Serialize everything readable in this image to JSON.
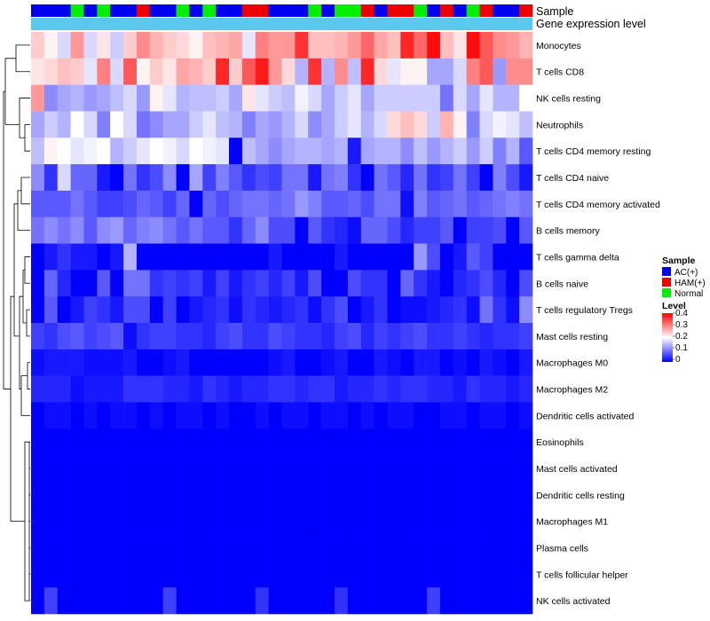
{
  "chart_data": {
    "type": "heatmap",
    "annotation_rows": [
      "Sample",
      "Gene expression level"
    ],
    "sample_groups": [
      "AC(+)",
      "AC(+)",
      "AC(+)",
      "Normal",
      "AC(+)",
      "Normal",
      "AC(+)",
      "AC(+)",
      "HAM(+)",
      "AC(+)",
      "AC(+)",
      "Normal",
      "AC(+)",
      "Normal",
      "AC(+)",
      "AC(+)",
      "HAM(+)",
      "HAM(+)",
      "AC(+)",
      "AC(+)",
      "AC(+)",
      "Normal",
      "AC(+)",
      "Normal",
      "Normal",
      "HAM(+)",
      "AC(+)",
      "HAM(+)",
      "HAM(+)",
      "Normal",
      "AC(+)",
      "HAM(+)",
      "AC(+)",
      "Normal",
      "HAM(+)",
      "AC(+)",
      "AC(+)",
      "HAM(+)"
    ],
    "rows": [
      "Monocytes",
      "T cells CD8",
      "NK cells resting",
      "Neutrophils",
      "T cells CD4 memory resting",
      "T cells CD4 naive",
      "T cells CD4 memory activated",
      "B cells memory",
      "T cells gamma delta",
      "B cells naive",
      "T cells regulatory  Tregs",
      "Mast cells resting",
      "Macrophages M0",
      "Macrophages M2",
      "Dendritic cells activated",
      "Eosinophils",
      "Mast cells activated",
      "Dendritic cells resting",
      "Macrophages M1",
      "Plasma cells",
      "T cells follicular helper",
      "NK cells activated"
    ],
    "values": [
      [
        0.24,
        0.21,
        0.17,
        0.28,
        0.17,
        0.22,
        0.16,
        0.24,
        0.29,
        0.26,
        0.24,
        0.23,
        0.21,
        0.25,
        0.26,
        0.27,
        0.18,
        0.3,
        0.28,
        0.28,
        0.36,
        0.25,
        0.25,
        0.26,
        0.28,
        0.32,
        0.27,
        0.25,
        0.37,
        0.32,
        0.39,
        0.25,
        0.22,
        0.39,
        0.33,
        0.29,
        0.28,
        0.26
      ],
      [
        0.22,
        0.23,
        0.25,
        0.24,
        0.18,
        0.3,
        0.17,
        0.33,
        0.21,
        0.24,
        0.22,
        0.27,
        0.26,
        0.24,
        0.37,
        0.24,
        0.33,
        0.38,
        0.28,
        0.23,
        0.14,
        0.36,
        0.14,
        0.29,
        0.15,
        0.37,
        0.23,
        0.18,
        0.21,
        0.21,
        0.13,
        0.13,
        0.17,
        0.3,
        0.33,
        0.12,
        0.29,
        0.29
      ],
      [
        0.28,
        0.11,
        0.13,
        0.14,
        0.12,
        0.13,
        0.15,
        0.17,
        0.12,
        0.21,
        0.18,
        0.14,
        0.15,
        0.15,
        0.16,
        0.13,
        0.22,
        0.18,
        0.16,
        0.15,
        0.19,
        0.17,
        0.13,
        0.16,
        0.18,
        0.13,
        0.16,
        0.16,
        0.16,
        0.16,
        0.16,
        0.09,
        0.17,
        0.13,
        0.18,
        0.14,
        0.14,
        0.2
      ],
      [
        0.13,
        0.16,
        0.14,
        0.2,
        0.17,
        0.1,
        0.2,
        0.17,
        0.09,
        0.11,
        0.13,
        0.13,
        0.16,
        0.18,
        0.15,
        0.14,
        0.1,
        0.13,
        0.12,
        0.14,
        0.17,
        0.11,
        0.13,
        0.16,
        0.18,
        0.14,
        0.17,
        0.23,
        0.25,
        0.23,
        0.16,
        0.26,
        0.21,
        0.1,
        0.17,
        0.19,
        0.18,
        0.15
      ],
      [
        0.15,
        0.21,
        0.2,
        0.18,
        0.19,
        0.2,
        0.14,
        0.16,
        0.18,
        0.2,
        0.19,
        0.17,
        0.2,
        0.19,
        0.18,
        0.0,
        0.15,
        0.13,
        0.11,
        0.13,
        0.14,
        0.14,
        0.13,
        0.14,
        0.02,
        0.13,
        0.14,
        0.14,
        0.11,
        0.15,
        0.12,
        0.14,
        0.16,
        0.12,
        0.16,
        0.1,
        0.14,
        0.07
      ],
      [
        0.11,
        0.04,
        0.17,
        0.08,
        0.08,
        0.02,
        0.0,
        0.09,
        0.04,
        0.06,
        0.11,
        0.0,
        0.13,
        0.05,
        0.1,
        0.07,
        0.04,
        0.06,
        0.05,
        0.09,
        0.09,
        0.02,
        0.09,
        0.1,
        0.04,
        0.0,
        0.09,
        0.07,
        0.03,
        0.09,
        0.04,
        0.05,
        0.09,
        0.05,
        0.0,
        0.1,
        0.06,
        0.02
      ],
      [
        0.07,
        0.07,
        0.07,
        0.09,
        0.07,
        0.05,
        0.05,
        0.06,
        0.08,
        0.07,
        0.05,
        0.08,
        0.0,
        0.08,
        0.06,
        0.08,
        0.09,
        0.09,
        0.08,
        0.09,
        0.12,
        0.1,
        0.07,
        0.07,
        0.08,
        0.06,
        0.09,
        0.09,
        0.01,
        0.1,
        0.07,
        0.08,
        0.09,
        0.07,
        0.08,
        0.09,
        0.1,
        0.09
      ],
      [
        0.09,
        0.11,
        0.09,
        0.11,
        0.07,
        0.11,
        0.12,
        0.08,
        0.1,
        0.11,
        0.09,
        0.07,
        0.09,
        0.07,
        0.07,
        0.04,
        0.08,
        0.11,
        0.06,
        0.06,
        0.0,
        0.07,
        0.04,
        0.03,
        0.01,
        0.08,
        0.08,
        0.06,
        0.03,
        0.05,
        0.05,
        0.07,
        0.0,
        0.05,
        0.05,
        0.06,
        0.0,
        0.07
      ],
      [
        0.0,
        0.02,
        0.04,
        0.02,
        0.02,
        0.0,
        0.02,
        0.14,
        0.0,
        0.0,
        0.0,
        0.0,
        0.0,
        0.0,
        0.0,
        0.0,
        0.0,
        0.0,
        0.02,
        0.0,
        0.0,
        0.0,
        0.0,
        0.02,
        0.0,
        0.0,
        0.0,
        0.0,
        0.0,
        0.12,
        0.06,
        0.0,
        0.02,
        0.07,
        0.05,
        0.0,
        0.0,
        0.0
      ],
      [
        0.0,
        0.08,
        0.03,
        0.0,
        0.0,
        0.07,
        0.0,
        0.09,
        0.09,
        0.04,
        0.05,
        0.04,
        0.05,
        0.02,
        0.05,
        0.02,
        0.04,
        0.05,
        0.03,
        0.05,
        0.02,
        0.06,
        0.0,
        0.0,
        0.06,
        0.04,
        0.04,
        0.0,
        0.08,
        0.04,
        0.02,
        0.0,
        0.03,
        0.04,
        0.06,
        0.03,
        0.0,
        0.06
      ],
      [
        0.0,
        0.07,
        0.0,
        0.02,
        0.05,
        0.04,
        0.02,
        0.06,
        0.06,
        0.0,
        0.05,
        0.0,
        0.02,
        0.03,
        0.04,
        0.01,
        0.04,
        0.03,
        0.02,
        0.03,
        0.04,
        0.01,
        0.04,
        0.06,
        0.0,
        0.02,
        0.04,
        0.0,
        0.01,
        0.01,
        0.02,
        0.03,
        0.04,
        0.01,
        0.09,
        0.04,
        0.01,
        0.11
      ],
      [
        0.05,
        0.04,
        0.06,
        0.07,
        0.05,
        0.06,
        0.07,
        0.01,
        0.04,
        0.05,
        0.05,
        0.04,
        0.04,
        0.03,
        0.05,
        0.06,
        0.04,
        0.04,
        0.06,
        0.05,
        0.04,
        0.04,
        0.03,
        0.05,
        0.06,
        0.03,
        0.05,
        0.04,
        0.05,
        0.06,
        0.04,
        0.04,
        0.05,
        0.04,
        0.03,
        0.04,
        0.04,
        0.05
      ],
      [
        0.01,
        0.02,
        0.02,
        0.02,
        0.01,
        0.01,
        0.01,
        0.02,
        0.0,
        0.0,
        0.01,
        0.02,
        0.0,
        0.0,
        0.0,
        0.0,
        0.0,
        0.0,
        0.01,
        0.02,
        0.0,
        0.0,
        0.01,
        0.02,
        0.0,
        0.0,
        0.02,
        0.01,
        0.0,
        0.02,
        0.02,
        0.0,
        0.01,
        0.0,
        0.02,
        0.01,
        0.0,
        0.02
      ],
      [
        0.03,
        0.03,
        0.03,
        0.01,
        0.02,
        0.02,
        0.02,
        0.04,
        0.04,
        0.04,
        0.03,
        0.03,
        0.02,
        0.04,
        0.03,
        0.02,
        0.03,
        0.03,
        0.04,
        0.04,
        0.03,
        0.04,
        0.04,
        0.02,
        0.03,
        0.03,
        0.04,
        0.03,
        0.04,
        0.04,
        0.03,
        0.03,
        0.02,
        0.04,
        0.03,
        0.03,
        0.02,
        0.03
      ],
      [
        0.0,
        0.01,
        0.01,
        0.0,
        0.01,
        0.0,
        0.01,
        0.01,
        0.0,
        0.01,
        0.0,
        0.01,
        0.01,
        0.0,
        0.01,
        0.0,
        0.0,
        0.01,
        0.0,
        0.01,
        0.01,
        0.0,
        0.01,
        0.01,
        0.0,
        0.01,
        0.0,
        0.01,
        0.01,
        0.0,
        0.0,
        0.01,
        0.01,
        0.0,
        0.01,
        0.01,
        0.0,
        0.01
      ],
      [
        0.0,
        0.0,
        0.0,
        0.0,
        0.0,
        0.0,
        0.0,
        0.0,
        0.0,
        0.0,
        0.0,
        0.0,
        0.0,
        0.0,
        0.0,
        0.0,
        0.0,
        0.0,
        0.0,
        0.0,
        0.0,
        0.0,
        0.0,
        0.0,
        0.0,
        0.0,
        0.0,
        0.0,
        0.0,
        0.0,
        0.0,
        0.0,
        0.0,
        0.0,
        0.0,
        0.0,
        0.0,
        0.0
      ],
      [
        0.0,
        0.0,
        0.0,
        0.0,
        0.0,
        0.0,
        0.0,
        0.0,
        0.0,
        0.0,
        0.0,
        0.0,
        0.0,
        0.0,
        0.0,
        0.0,
        0.0,
        0.0,
        0.0,
        0.0,
        0.0,
        0.0,
        0.0,
        0.0,
        0.0,
        0.0,
        0.0,
        0.0,
        0.0,
        0.0,
        0.0,
        0.0,
        0.0,
        0.0,
        0.0,
        0.0,
        0.0,
        0.0
      ],
      [
        0.0,
        0.0,
        0.0,
        0.0,
        0.0,
        0.0,
        0.0,
        0.0,
        0.0,
        0.0,
        0.0,
        0.0,
        0.0,
        0.0,
        0.0,
        0.0,
        0.0,
        0.0,
        0.0,
        0.0,
        0.0,
        0.0,
        0.0,
        0.0,
        0.0,
        0.0,
        0.0,
        0.0,
        0.0,
        0.0,
        0.0,
        0.0,
        0.0,
        0.0,
        0.0,
        0.0,
        0.0,
        0.0
      ],
      [
        0.0,
        0.0,
        0.0,
        0.0,
        0.0,
        0.0,
        0.0,
        0.0,
        0.0,
        0.0,
        0.0,
        0.0,
        0.0,
        0.0,
        0.0,
        0.0,
        0.0,
        0.0,
        0.0,
        0.0,
        0.0,
        0.0,
        0.0,
        0.0,
        0.0,
        0.0,
        0.0,
        0.0,
        0.0,
        0.0,
        0.0,
        0.0,
        0.0,
        0.0,
        0.0,
        0.0,
        0.0,
        0.0
      ],
      [
        0.0,
        0.0,
        0.0,
        0.0,
        0.0,
        0.0,
        0.0,
        0.0,
        0.0,
        0.0,
        0.0,
        0.0,
        0.0,
        0.0,
        0.0,
        0.0,
        0.0,
        0.0,
        0.0,
        0.0,
        0.0,
        0.0,
        0.0,
        0.0,
        0.0,
        0.0,
        0.0,
        0.0,
        0.0,
        0.0,
        0.0,
        0.0,
        0.0,
        0.0,
        0.0,
        0.0,
        0.0,
        0.0
      ],
      [
        0.0,
        0.0,
        0.0,
        0.0,
        0.0,
        0.0,
        0.0,
        0.0,
        0.0,
        0.0,
        0.0,
        0.0,
        0.0,
        0.0,
        0.0,
        0.0,
        0.0,
        0.0,
        0.0,
        0.0,
        0.0,
        0.0,
        0.0,
        0.0,
        0.0,
        0.0,
        0.0,
        0.0,
        0.0,
        0.0,
        0.0,
        0.0,
        0.0,
        0.0,
        0.0,
        0.0,
        0.0,
        0.0
      ],
      [
        0.0,
        0.05,
        0.0,
        0.0,
        0.0,
        0.0,
        0.0,
        0.0,
        0.0,
        0.0,
        0.05,
        0.0,
        0.0,
        0.0,
        0.0,
        0.0,
        0.0,
        0.04,
        0.0,
        0.0,
        0.0,
        0.0,
        0.0,
        0.04,
        0.0,
        0.0,
        0.0,
        0.0,
        0.0,
        0.0,
        0.05,
        0.0,
        0.0,
        0.0,
        0.0,
        0.0,
        0.0,
        0.0
      ]
    ],
    "color_scale": {
      "min": 0,
      "mid": 0.2,
      "max": 0.4,
      "low_color": "#0000ff",
      "mid_color": "#ffffff",
      "high_color": "#ff0000"
    },
    "legend": {
      "sample_title": "Sample",
      "sample_entries": [
        {
          "label": "AC(+)",
          "color": "#0000ee"
        },
        {
          "label": "HAM(+)",
          "color": "#ee0000"
        },
        {
          "label": "Normal",
          "color": "#00ee00"
        }
      ],
      "level_title": "Level",
      "level_ticks": [
        "0.4",
        "0.3",
        "0.2",
        "0.1",
        "0"
      ],
      "placement": "right"
    },
    "expression_bar_color": "#5bc8ee",
    "dendrogram": "row-clustering-left"
  }
}
